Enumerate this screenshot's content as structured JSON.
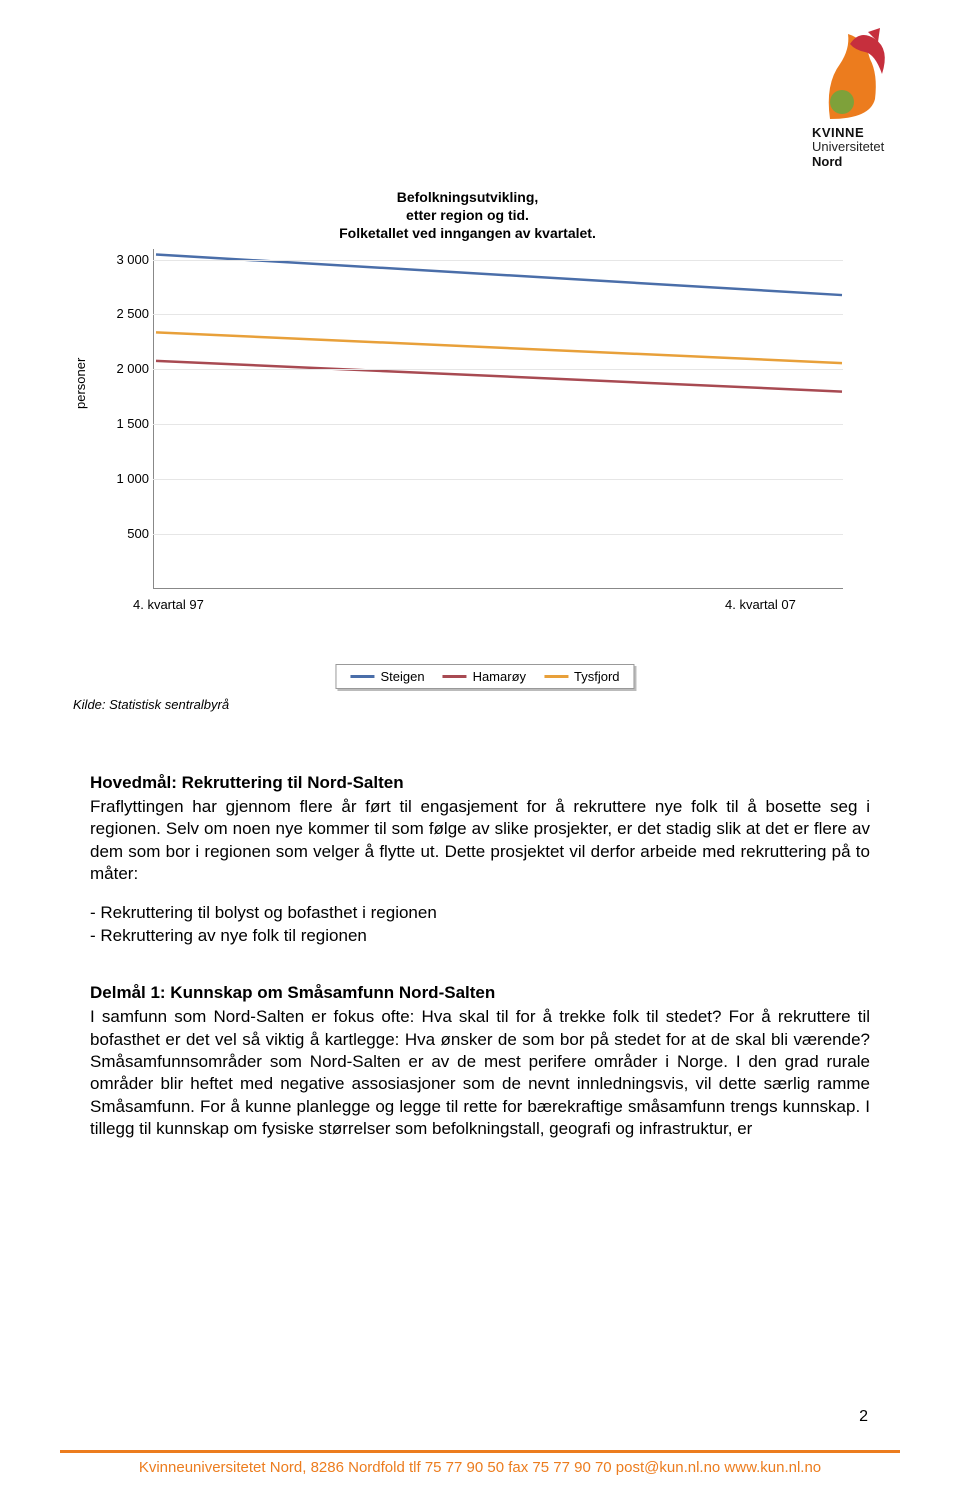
{
  "logo": {
    "line1": "KVINNE",
    "line2": "Universitetet",
    "line3": "Nord",
    "colors": {
      "orange": "#ec7c1e",
      "red": "#c03",
      "green": "#7ea13a"
    }
  },
  "chart": {
    "type": "line",
    "title_lines": [
      "Befolkningsutvikling,",
      "etter region og tid.",
      "Folketallet ved inngangen av kvartalet."
    ],
    "ylabel": "personer",
    "ylim": [
      0,
      3100
    ],
    "yticks": [
      500,
      1000,
      1500,
      2000,
      2500,
      3000
    ],
    "ytick_labels": [
      "500",
      "1 000",
      "1 500",
      "2 000",
      "2 500",
      "3 000"
    ],
    "x_start_label": "4. kvartal  97",
    "x_end_label": "4. kvartal  07",
    "series": [
      {
        "name": "Steigen",
        "color": "#4a6ea9",
        "y0": 3050,
        "y1": 2680
      },
      {
        "name": "Hamarøy",
        "color": "#a84a52",
        "y0": 2080,
        "y1": 1800
      },
      {
        "name": "Tysfjord",
        "color": "#e8a03a",
        "y0": 2340,
        "y1": 2060
      }
    ],
    "source_label": "Kilde: Statistisk sentralbyrå",
    "background_color": "#ffffff",
    "grid_color": "#e6e6e6",
    "line_width": 2.5
  },
  "content": {
    "h_main": "Hovedmål: Rekruttering til Nord-Salten",
    "p_main": "Fraflyttingen har gjennom flere år ført til engasjement for å rekruttere nye folk til å bosette seg i regionen. Selv om noen nye kommer til som følge av slike prosjekter, er det stadig slik at det er flere av dem som bor i regionen som velger å flytte ut. Dette prosjektet vil derfor arbeide med rekruttering på to måter:",
    "bullet1": "- Rekruttering til bolyst og bofasthet i regionen",
    "bullet2": "- Rekruttering av nye folk til regionen",
    "h_sub": "Delmål 1: Kunnskap om Småsamfunn Nord-Salten",
    "p_sub": "I samfunn som Nord-Salten er fokus ofte: Hva skal til for å trekke folk til stedet? For å rekruttere til bofasthet er det vel så viktig å kartlegge: Hva ønsker de som bor på stedet for at de skal bli værende? Småsamfunnsområder som Nord-Salten er av de mest perifere områder i Norge. I den grad rurale områder blir heftet med negative assosiasjoner som de nevnt innledningsvis, vil dette særlig ramme Småsamfunn. For å kunne planlegge og legge til rette for bærekraftige småsamfunn trengs kunnskap. I tillegg til kunnskap om fysiske størrelser som befolkningstall, geografi og infrastruktur, er"
  },
  "footer_text": "Kvinneuniversitetet Nord, 8286 Nordfold tlf 75 77 90 50 fax 75 77 90 70 post@kun.nl.no  www.kun.nl.no",
  "page_number": "2"
}
